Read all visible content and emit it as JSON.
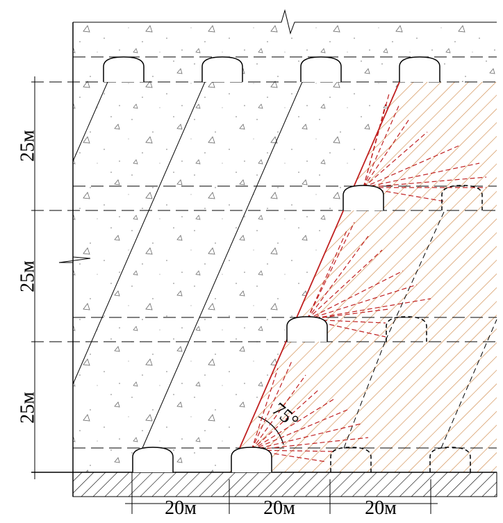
{
  "dimensions": {
    "vertical": [
      "25м",
      "25м",
      "25м"
    ],
    "horizontal": [
      "20м",
      "20м",
      "20м"
    ]
  },
  "angle": "75°"
}
